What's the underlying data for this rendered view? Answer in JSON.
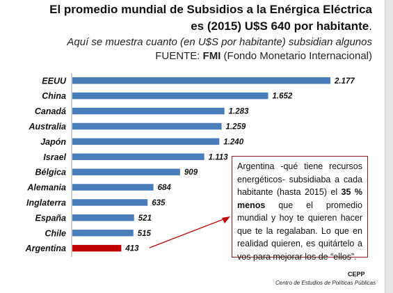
{
  "header": {
    "line1": "El promedio mundial de Subsidios a la Enérgica Eléctrica",
    "line2_bold": "es (2015) U$S 640 por habitante",
    "line2_end": ".",
    "line3": "Aquí se muestra cuanto (en U$S por habitante) subsidian algunos",
    "line4_pre": "FUENTE: ",
    "line4_bold": "FMI",
    "line4_post": " (Fondo Monetario Internacional)"
  },
  "chart_data": {
    "type": "bar",
    "orientation": "horizontal",
    "categories": [
      "EEUU",
      "China",
      "Canadá",
      "Australia",
      "Japón",
      "Israel",
      "Bélgica",
      "Alemania",
      "Inglaterra",
      "España",
      "Chile",
      "Argentina"
    ],
    "values": [
      2177,
      1652,
      1283,
      1259,
      1240,
      1113,
      909,
      684,
      635,
      521,
      515,
      413
    ],
    "value_labels": [
      "2.177",
      "1.652",
      "1.283",
      "1.259",
      "1.240",
      "1.113",
      "909",
      "684",
      "635",
      "521",
      "515",
      "413"
    ],
    "bar_color": "#4a7ebb",
    "highlight_color": "#c00000",
    "highlight_category": "Argentina",
    "xlim": [
      0,
      2177
    ],
    "grid": false,
    "legend": "none"
  },
  "note": {
    "part1": "Argentina -qué tiene recursos energéticos- subsidiaba a cada habitante (hasta 2015) el ",
    "bold": "35 % menos",
    "part2": " que el promedio mundial y hoy te quieren hacer que te la regalaban. Lo que en realidad quieren, es quitártelo a vos para mejorar los de “ellos”."
  },
  "source": {
    "abbr": "CEPP",
    "full": "Centro de Estudios de Políticas Públicas"
  },
  "colors": {
    "arrow": "#c00000",
    "note_border": "#8b1a1a"
  }
}
